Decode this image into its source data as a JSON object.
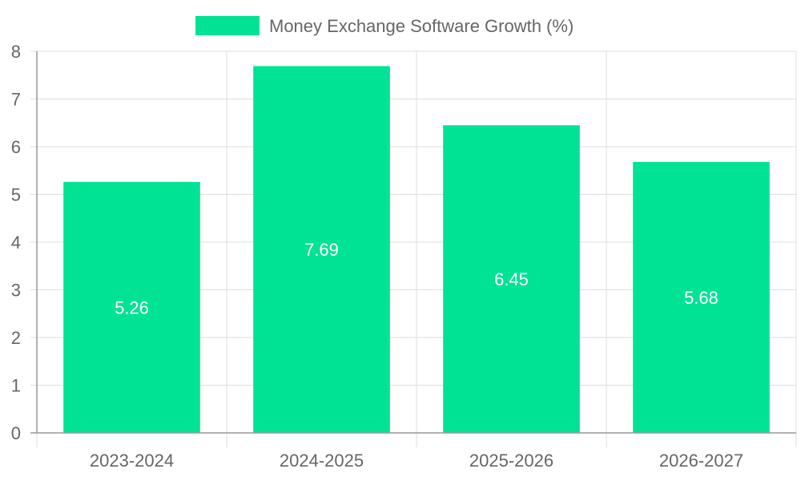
{
  "chart_data": {
    "type": "bar",
    "categories": [
      "2023-2024",
      "2024-2025",
      "2025-2026",
      "2026-2027"
    ],
    "series": [
      {
        "name": "Money Exchange Software Growth (%)",
        "values": [
          5.26,
          7.69,
          6.45,
          5.68
        ]
      }
    ],
    "data_labels": [
      "5.26",
      "7.69",
      "6.45",
      "5.68"
    ],
    "y_ticks": [
      "0",
      "1",
      "2",
      "3",
      "4",
      "5",
      "6",
      "7",
      "8"
    ],
    "ylim": [
      0,
      8
    ],
    "grid": true,
    "legend_position": "top-center",
    "colors": {
      "bar": "#00e394",
      "grid": "#dddddd",
      "axis": "#999999",
      "text": "#666666",
      "data_label": "#ffffff"
    }
  }
}
